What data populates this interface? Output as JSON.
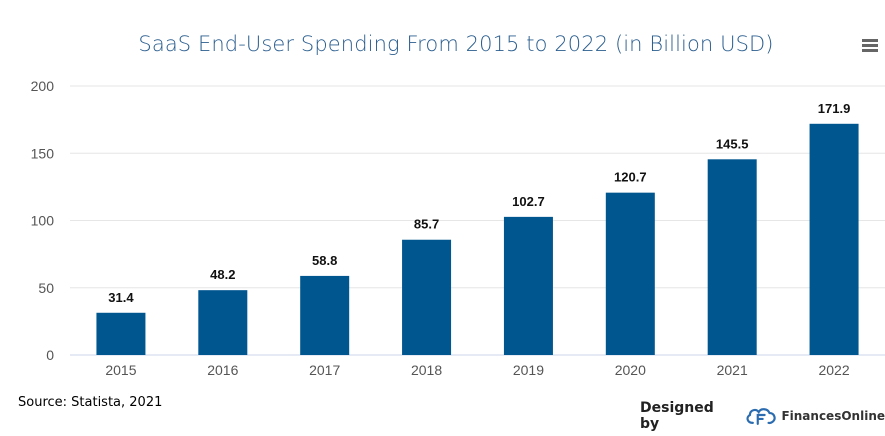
{
  "chart_data": {
    "type": "bar",
    "title": "SaaS End-User Spending From 2015 to 2022 (in Billion USD)",
    "categories": [
      "2015",
      "2016",
      "2017",
      "2018",
      "2019",
      "2020",
      "2021",
      "2022"
    ],
    "values": [
      31.4,
      48.2,
      58.8,
      85.7,
      102.7,
      120.7,
      145.5,
      171.9
    ],
    "value_labels": [
      "31.4",
      "48.2",
      "58.8",
      "85.7",
      "102.7",
      "120.7",
      "145.5",
      "171.9"
    ],
    "xlabel": "",
    "ylabel": "",
    "ylim": [
      0,
      200
    ],
    "yticks": [
      "0",
      "50",
      "100",
      "150",
      "200"
    ],
    "grid": true,
    "bar_color": "#00568f"
  },
  "footer": {
    "source": "Source: Statista, 2021",
    "designed_by": "Designed by",
    "brand": "FinancesOnline"
  },
  "icons": {
    "menu": "hamburger-menu-icon",
    "brand": "financesonline-logo-icon"
  },
  "colors": {
    "title": "#2b5e8f",
    "bar": "#00568f",
    "grid": "#e6e6e6",
    "axis": "#ccd6eb"
  }
}
